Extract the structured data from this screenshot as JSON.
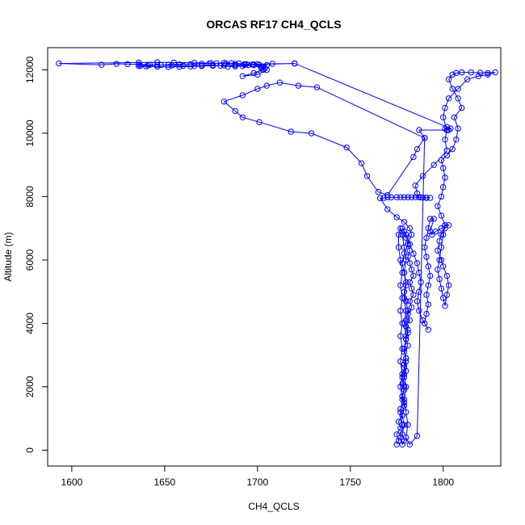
{
  "chart_data": {
    "type": "line",
    "title": "ORCAS RF17 CH4_QCLS",
    "xlabel": "CH4_QCLS",
    "ylabel": "Altitude (m)",
    "xlim": [
      1587,
      1831
    ],
    "ylim": [
      -500,
      12700
    ],
    "xticks": [
      1600,
      1650,
      1700,
      1750,
      1800
    ],
    "yticks": [
      0,
      2000,
      4000,
      6000,
      8000,
      10000,
      12000
    ],
    "grid": false,
    "marker": "open-circle",
    "series": [
      {
        "color": "#0000ff",
        "points": [
          [
            1775,
            180
          ],
          [
            1776,
            300
          ],
          [
            1775,
            500
          ],
          [
            1777,
            700
          ],
          [
            1776,
            900
          ],
          [
            1778,
            1100
          ],
          [
            1777,
            1300
          ],
          [
            1779,
            1500
          ],
          [
            1778,
            1700
          ],
          [
            1779,
            1900
          ],
          [
            1778,
            2100
          ],
          [
            1779,
            2300
          ],
          [
            1780,
            2500
          ],
          [
            1779,
            2700
          ],
          [
            1780,
            2900
          ],
          [
            1779,
            3100
          ],
          [
            1781,
            3300
          ],
          [
            1780,
            3500
          ],
          [
            1781,
            3700
          ],
          [
            1780,
            3900
          ],
          [
            1782,
            4100
          ],
          [
            1781,
            4300
          ],
          [
            1783,
            4500
          ],
          [
            1782,
            4700
          ],
          [
            1784,
            4900
          ],
          [
            1783,
            5100
          ],
          [
            1782,
            5300
          ],
          [
            1784,
            5500
          ],
          [
            1783,
            5700
          ],
          [
            1782,
            5900
          ],
          [
            1781,
            6100
          ],
          [
            1782,
            6300
          ],
          [
            1781,
            6500
          ],
          [
            1780,
            6700
          ],
          [
            1779,
            6900
          ],
          [
            1778,
            7000
          ],
          [
            1780,
            6800
          ],
          [
            1782,
            6500
          ],
          [
            1784,
            6200
          ],
          [
            1786,
            5900
          ],
          [
            1787,
            5600
          ],
          [
            1788,
            5300
          ],
          [
            1787,
            5000
          ],
          [
            1786,
            4700
          ],
          [
            1787,
            4400
          ],
          [
            1789,
            4100
          ],
          [
            1792,
            3800
          ],
          [
            1790,
            4000
          ],
          [
            1791,
            4300
          ],
          [
            1792,
            4600
          ],
          [
            1791,
            4900
          ],
          [
            1792,
            5200
          ],
          [
            1793,
            5500
          ],
          [
            1792,
            5800
          ],
          [
            1791,
            6100
          ],
          [
            1790,
            6400
          ],
          [
            1791,
            6700
          ],
          [
            1792,
            7000
          ],
          [
            1793,
            7300
          ],
          [
            1795,
            7300
          ],
          [
            1793,
            6900
          ],
          [
            1794,
            6800
          ],
          [
            1796,
            6900
          ],
          [
            1799,
            7000
          ],
          [
            1801,
            7100
          ],
          [
            1803,
            7100
          ],
          [
            1801,
            7000
          ],
          [
            1799,
            6800
          ],
          [
            1798,
            6600
          ],
          [
            1797,
            6300
          ],
          [
            1799,
            6000
          ],
          [
            1800,
            5800
          ],
          [
            1802,
            5500
          ],
          [
            1803,
            5200
          ],
          [
            1802,
            4900
          ],
          [
            1801,
            4550
          ],
          [
            1800,
            4800
          ],
          [
            1799,
            5100
          ],
          [
            1798,
            5400
          ],
          [
            1797,
            5700
          ],
          [
            1798,
            6000
          ],
          [
            1799,
            6400
          ],
          [
            1800,
            6800
          ],
          [
            1801,
            7100
          ],
          [
            1799,
            7400
          ],
          [
            1797,
            7700
          ],
          [
            1799,
            8000
          ],
          [
            1800,
            8300
          ],
          [
            1801,
            8600
          ],
          [
            1800,
            8900
          ],
          [
            1799,
            9150
          ],
          [
            1802,
            9300
          ],
          [
            1805,
            9500
          ],
          [
            1807,
            9800
          ],
          [
            1808,
            10150
          ],
          [
            1806,
            10500
          ],
          [
            1810,
            10800
          ],
          [
            1808,
            11100
          ],
          [
            1805,
            11400
          ],
          [
            1803,
            11700
          ],
          [
            1805,
            11850
          ],
          [
            1807,
            11900
          ],
          [
            1810,
            11920
          ],
          [
            1815,
            11920
          ],
          [
            1820,
            11910
          ],
          [
            1824,
            11900
          ],
          [
            1828,
            11920
          ],
          [
            1824,
            11850
          ],
          [
            1819,
            11800
          ],
          [
            1813,
            11700
          ],
          [
            1808,
            11400
          ],
          [
            1803,
            11100
          ],
          [
            1801,
            10800
          ],
          [
            1800,
            10500
          ],
          [
            1802,
            10100
          ],
          [
            1801,
            9800
          ],
          [
            1802,
            9450
          ],
          [
            1795,
            9000
          ],
          [
            1789,
            8650
          ],
          [
            1785,
            8350
          ],
          [
            1786,
            8100
          ],
          [
            1787,
            7980
          ],
          [
            1789,
            7970
          ],
          [
            1791,
            7960
          ],
          [
            1793,
            7960
          ],
          [
            1791,
            7970
          ],
          [
            1788,
            7975
          ],
          [
            1785,
            7980
          ],
          [
            1783,
            7980
          ],
          [
            1781,
            7980
          ],
          [
            1779,
            7980
          ],
          [
            1777,
            7980
          ],
          [
            1775,
            7980
          ],
          [
            1772,
            7975
          ],
          [
            1770,
            7980
          ],
          [
            1768,
            7960
          ],
          [
            1766,
            7950
          ],
          [
            1770,
            7600
          ],
          [
            1775,
            7350
          ],
          [
            1779,
            7200
          ],
          [
            1782,
            7000
          ],
          [
            1783,
            6800
          ],
          [
            1781,
            6500
          ],
          [
            1779,
            6200
          ],
          [
            1778,
            5900
          ],
          [
            1779,
            5600
          ],
          [
            1780,
            5300
          ],
          [
            1779,
            5000
          ],
          [
            1780,
            4700
          ],
          [
            1781,
            4400
          ],
          [
            1780,
            4100
          ],
          [
            1781,
            3800
          ],
          [
            1780,
            3500
          ],
          [
            1779,
            3200
          ],
          [
            1780,
            2900
          ],
          [
            1779,
            2600
          ],
          [
            1778,
            2300
          ],
          [
            1779,
            2000
          ],
          [
            1778,
            1700
          ],
          [
            1779,
            1400
          ],
          [
            1778,
            1100
          ],
          [
            1779,
            800
          ],
          [
            1778,
            500
          ],
          [
            1779,
            300
          ],
          [
            1778,
            180
          ],
          [
            1777,
            400
          ],
          [
            1778,
            800
          ],
          [
            1777,
            1200
          ],
          [
            1778,
            1600
          ],
          [
            1777,
            2000
          ],
          [
            1778,
            2400
          ],
          [
            1777,
            2800
          ],
          [
            1778,
            3200
          ],
          [
            1777,
            3600
          ],
          [
            1778,
            4000
          ],
          [
            1777,
            4400
          ],
          [
            1778,
            4800
          ],
          [
            1777,
            5200
          ],
          [
            1778,
            5600
          ],
          [
            1777,
            6000
          ],
          [
            1776,
            6400
          ],
          [
            1776,
            6800
          ],
          [
            1777,
            7000
          ],
          [
            1778,
            6800
          ],
          [
            1779,
            6400
          ],
          [
            1780,
            6000
          ],
          [
            1779,
            5600
          ],
          [
            1780,
            5200
          ],
          [
            1779,
            4800
          ],
          [
            1780,
            4400
          ],
          [
            1779,
            4000
          ],
          [
            1780,
            3600
          ],
          [
            1779,
            3200
          ],
          [
            1780,
            2800
          ],
          [
            1779,
            2400
          ],
          [
            1780,
            2000
          ],
          [
            1779,
            1600
          ],
          [
            1780,
            1200
          ],
          [
            1781,
            800
          ],
          [
            1780,
            400
          ],
          [
            1782,
            180
          ],
          [
            1786,
            450
          ],
          [
            1790,
            9850
          ],
          [
            1786,
            9500
          ],
          [
            1784,
            9250
          ],
          [
            1770,
            8050
          ],
          [
            1765,
            8150
          ],
          [
            1759,
            8650
          ],
          [
            1756,
            9050
          ],
          [
            1748,
            9550
          ],
          [
            1729,
            10000
          ],
          [
            1718,
            10050
          ],
          [
            1701,
            10350
          ],
          [
            1692,
            10500
          ],
          [
            1688,
            10700
          ],
          [
            1682,
            11000
          ],
          [
            1692,
            11200
          ],
          [
            1700,
            11400
          ],
          [
            1705,
            11500
          ],
          [
            1712,
            11600
          ],
          [
            1722,
            11500
          ],
          [
            1732,
            11450
          ],
          [
            1790,
            9850
          ],
          [
            1787,
            10100
          ],
          [
            1802,
            10100
          ],
          [
            1801,
            10150
          ],
          [
            1802,
            10200
          ],
          [
            1803,
            10100
          ],
          [
            1804,
            10150
          ],
          [
            1720,
            12200
          ],
          [
            1708,
            12190
          ],
          [
            1700,
            12180
          ],
          [
            1695,
            12150
          ],
          [
            1692,
            12120
          ],
          [
            1688,
            12110
          ],
          [
            1684,
            12100
          ],
          [
            1680,
            12130
          ],
          [
            1676,
            12150
          ],
          [
            1670,
            12140
          ],
          [
            1666,
            12120
          ],
          [
            1660,
            12130
          ],
          [
            1654,
            12140
          ],
          [
            1648,
            12150
          ],
          [
            1642,
            12160
          ],
          [
            1636,
            12170
          ],
          [
            1630,
            12180
          ],
          [
            1624,
            12190
          ],
          [
            1616,
            12160
          ],
          [
            1593,
            12200
          ],
          [
            1636,
            12230
          ],
          [
            1646,
            12240
          ],
          [
            1655,
            12230
          ],
          [
            1666,
            12220
          ],
          [
            1675,
            12210
          ],
          [
            1683,
            12200
          ],
          [
            1688,
            12190
          ],
          [
            1693,
            12180
          ],
          [
            1697,
            12170
          ],
          [
            1701,
            12160
          ],
          [
            1705,
            12150
          ],
          [
            1703,
            12100
          ],
          [
            1702,
            12050
          ],
          [
            1703,
            12000
          ],
          [
            1698,
            11900
          ],
          [
            1692,
            11800
          ],
          [
            1700,
            11850
          ],
          [
            1705,
            12000
          ],
          [
            1704,
            12050
          ],
          [
            1702,
            12100
          ],
          [
            1698,
            12150
          ],
          [
            1694,
            12180
          ],
          [
            1690,
            12200
          ],
          [
            1686,
            12210
          ],
          [
            1682,
            12220
          ],
          [
            1678,
            12210
          ],
          [
            1674,
            12200
          ],
          [
            1670,
            12190
          ],
          [
            1664,
            12180
          ],
          [
            1658,
            12170
          ],
          [
            1652,
            12160
          ],
          [
            1646,
            12150
          ],
          [
            1641,
            12140
          ],
          [
            1637,
            12130
          ],
          [
            1636,
            12120
          ],
          [
            1640,
            12110
          ],
          [
            1646,
            12100
          ],
          [
            1652,
            12090
          ],
          [
            1658,
            12100
          ],
          [
            1664,
            12110
          ],
          [
            1670,
            12120
          ],
          [
            1676,
            12130
          ],
          [
            1682,
            12140
          ],
          [
            1688,
            12150
          ],
          [
            1693,
            12160
          ],
          [
            1698,
            12170
          ],
          [
            1720,
            12200
          ]
        ]
      }
    ]
  }
}
